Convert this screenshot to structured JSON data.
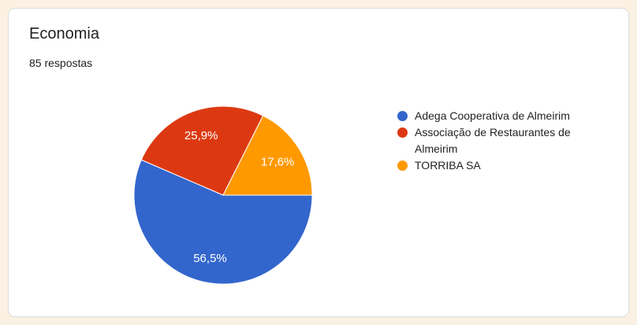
{
  "colors": {
    "page_background": "#faf1e2",
    "card_background": "#ffffff",
    "card_border": "#dadce0",
    "title_text": "#202124",
    "subtitle_text": "#202124",
    "legend_text": "#222222",
    "slice_label_text": "#ffffff"
  },
  "card": {
    "title": "Economia",
    "subtitle": "85 respostas"
  },
  "chart_data": {
    "type": "pie",
    "title": "Economia",
    "subtitle": "85 respostas",
    "total_responses": 85,
    "legend_position": "right",
    "start_angle_deg": 90,
    "direction": "clockwise",
    "slice_separator_color": "#ffffff",
    "slices": [
      {
        "label": "Adega Cooperativa de Almeirim",
        "value_percent": 56.5,
        "label_display": "56,5%",
        "color": "#3366cc"
      },
      {
        "label": "Associação de Restaurantes de Almeirim",
        "value_percent": 25.9,
        "label_display": "25,9%",
        "color": "#dc3912"
      },
      {
        "label": "TORRIBA SA",
        "value_percent": 17.6,
        "label_display": "17,6%",
        "color": "#ff9900"
      }
    ]
  }
}
